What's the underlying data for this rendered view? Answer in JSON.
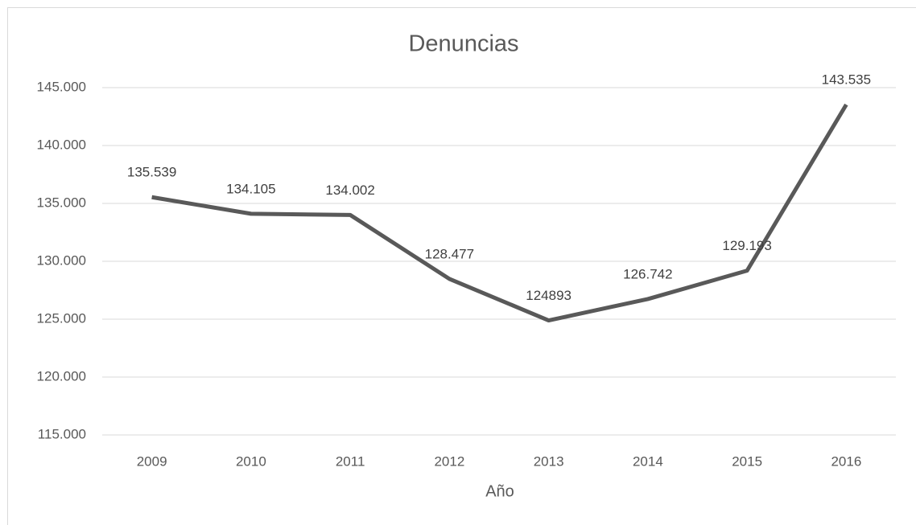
{
  "chart_data": {
    "type": "line",
    "title": "Denuncias",
    "x_label": "Año",
    "categories": [
      "2009",
      "2010",
      "2011",
      "2012",
      "2013",
      "2014",
      "2015",
      "2016"
    ],
    "series": [
      {
        "name": "Denuncias",
        "color": "#595959",
        "values": [
          135539,
          134105,
          134002,
          128477,
          124893,
          126742,
          129193,
          143535
        ],
        "value_labels": [
          "135.539",
          "134.105",
          "134.002",
          "128.477",
          "124893",
          "126.742",
          "129.193",
          "143.535"
        ]
      }
    ],
    "ylim": [
      115000,
      145000
    ],
    "yticks": [
      {
        "value": 115000,
        "label": "115.000"
      },
      {
        "value": 120000,
        "label": "120.000"
      },
      {
        "value": 125000,
        "label": "125.000"
      },
      {
        "value": 130000,
        "label": "130.000"
      },
      {
        "value": 135000,
        "label": "135.000"
      },
      {
        "value": 140000,
        "label": "140.000"
      },
      {
        "value": 145000,
        "label": "145.000"
      }
    ],
    "grid": true
  }
}
